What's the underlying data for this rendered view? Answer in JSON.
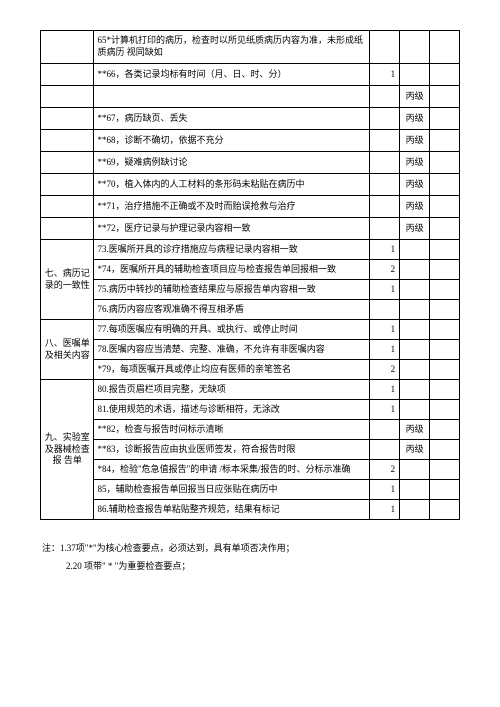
{
  "columns": {
    "section_width": 50,
    "content_width": 270,
    "score_width": 25,
    "level_width": 25,
    "blank_width": 25
  },
  "colors": {
    "text": "#000000",
    "border": "#000000",
    "background": "#ffffff"
  },
  "rows": [
    {
      "section": null,
      "content": "65*计算机打印的病历，检查时以所见纸质病历内容为准，未形成纸质病历 视同缺如",
      "score": "",
      "level": "",
      "tall": true
    },
    {
      "section": null,
      "content": "**66，各类记录均标有时间（月、日、时、分）",
      "score": "1",
      "level": "",
      "tall": false
    },
    {
      "section": null,
      "content": "",
      "score": "",
      "level": "丙级",
      "tall": false
    },
    {
      "section": null,
      "content": "**67，病历缺页、丢失",
      "score": "",
      "level": "丙级",
      "tall": false
    },
    {
      "section": null,
      "content": "**68，诊断不确切，依据不充分",
      "score": "",
      "level": "丙级",
      "tall": false
    },
    {
      "section": null,
      "content": "**69，疑难病例缺讨论",
      "score": "",
      "level": "丙级",
      "tall": false
    },
    {
      "section": null,
      "content": "**70，植入体内的人工材料的条形码未粘贴在病历中",
      "score": "",
      "level": "丙级",
      "tall": false
    },
    {
      "section": null,
      "content": "**71，治疗措施不正确或不及时而贻误抢救与治疗",
      "score": "",
      "level": "丙级",
      "tall": false
    },
    {
      "section": null,
      "content": "**72，医疗记录与护理记录内容相一致",
      "score": "",
      "level": "丙级",
      "tall": false
    },
    {
      "section": "七、病历记录的一致性",
      "rowspan": 4,
      "content": "73.医嘱所开具的诊疗措施应与病程记录内容相一致",
      "score": "1",
      "level": "",
      "tall": false
    },
    {
      "section": null,
      "content": "*74，医嘱所开具的辅助检查项目应与检查报告单回报相一致",
      "score": "2",
      "level": "",
      "tall": false
    },
    {
      "section": null,
      "content": "75.病历中转抄的辅助检查结果应与原报告单内容相一致",
      "score": "1",
      "level": "",
      "tall": false
    },
    {
      "section": null,
      "content": "76.病历内容应客观准确不得互相矛盾",
      "score": "",
      "level": "",
      "tall": false
    },
    {
      "section": "八、医嘱单及相关内容",
      "rowspan": 3,
      "content": "77.每项医嘱应有明确的开具、或执行、或停止时间",
      "score": "1",
      "level": "",
      "tall": false
    },
    {
      "section": null,
      "content": "78.医嘱内容应当清楚、完整、准确，不允许有非医嘱内容",
      "score": "1",
      "level": "",
      "tall": false
    },
    {
      "section": null,
      "content": "*79，每项医嘱开具或停止均应有医师的亲笔签名",
      "score": "2",
      "level": "",
      "tall": false
    },
    {
      "section": "九、实验室及器械检查报 告单",
      "rowspan": 7,
      "content": "80.报告页眉栏项目完整，无缺项",
      "score": "1",
      "level": "",
      "tall": false
    },
    {
      "section": null,
      "content": "81.使用规范的术语，描述与诊断相符，无涂改",
      "score": "1",
      "level": "",
      "tall": false
    },
    {
      "section": null,
      "content": "**82，检查与报告时间标示清晰",
      "score": "",
      "level": "丙级",
      "tall": false
    },
    {
      "section": null,
      "content": "**83，诊断报告应由执业医师签发，符合报告时限",
      "score": "",
      "level": "丙级",
      "tall": false
    },
    {
      "section": null,
      "content": "*84，检验\"危急值报告\"的申请  /标本采集/报告的时、分标示准确",
      "score": "2",
      "level": "",
      "tall": false
    },
    {
      "section": null,
      "content": "85，辅助检查报告单回报当日应张贴在病历中",
      "score": "1",
      "level": "",
      "tall": false
    },
    {
      "section": null,
      "content": "86.辅助检查报告单粘贴整齐规范，结果有标记",
      "score": "1",
      "level": "",
      "tall": false
    }
  ],
  "notes_heading": "注：",
  "note1": "1.37项\"*\"为核心检查要点，必须达到，具有单项否决作用；",
  "note2": "2.20 项带\" * \"为重要检查要点；"
}
